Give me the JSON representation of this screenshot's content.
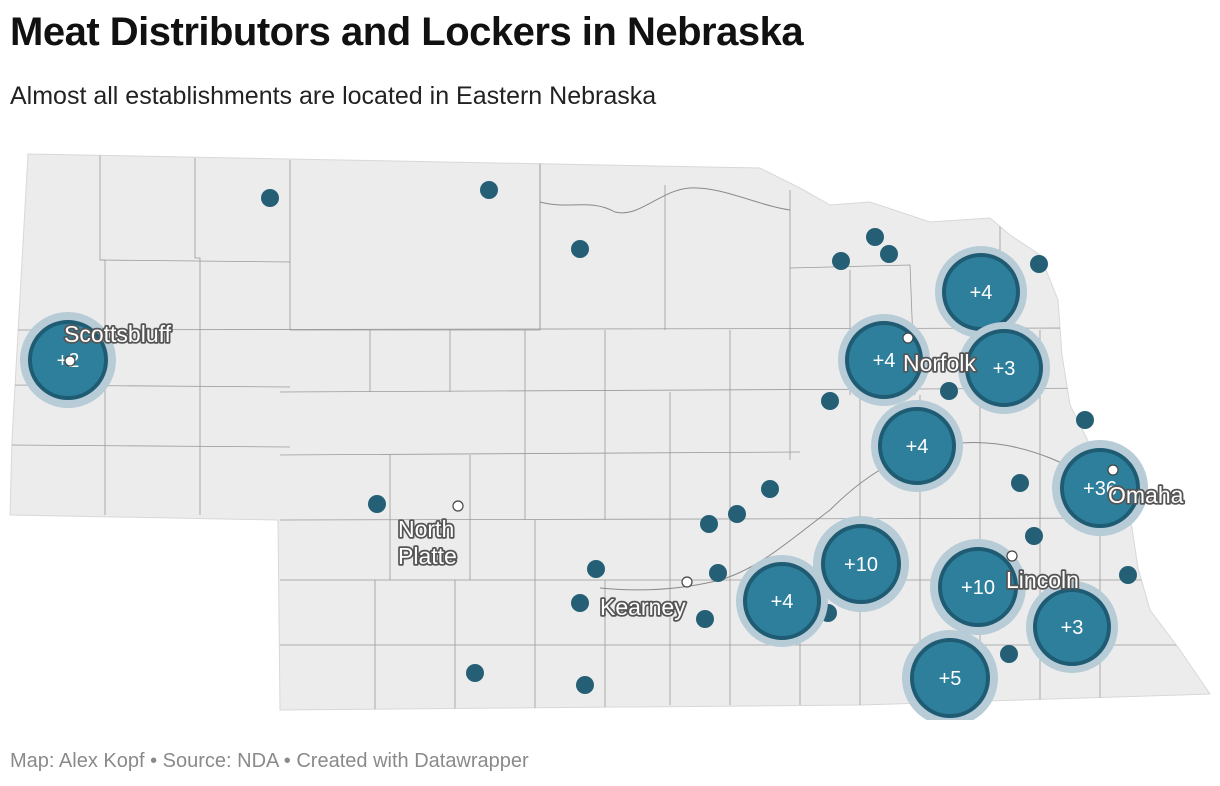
{
  "title": "Meat Distributors and Lockers in Nebraska",
  "subtitle": "Almost all establishments are located in Eastern Nebraska",
  "footer": "Map: Alex Kopf • Source: NDA • Created with Datawrapper",
  "colors": {
    "state_fill": "#ececec",
    "dot": "#245f76",
    "cluster": "#2e7f9c",
    "halo": "#b7ccd6"
  },
  "cities": [
    {
      "name": "Scottsbluff"
    },
    {
      "name": "Norfolk"
    },
    {
      "name": "Omaha"
    },
    {
      "name": "North Platte"
    },
    {
      "name": "Kearney"
    },
    {
      "name": "Lincoln"
    }
  ],
  "clusters": [
    {
      "label": "+2"
    },
    {
      "label": "+4"
    },
    {
      "label": "+4"
    },
    {
      "label": "+3"
    },
    {
      "label": "+4"
    },
    {
      "label": "+36"
    },
    {
      "label": "+10"
    },
    {
      "label": "+4"
    },
    {
      "label": "+10"
    },
    {
      "label": "+3"
    },
    {
      "label": "+5"
    }
  ]
}
